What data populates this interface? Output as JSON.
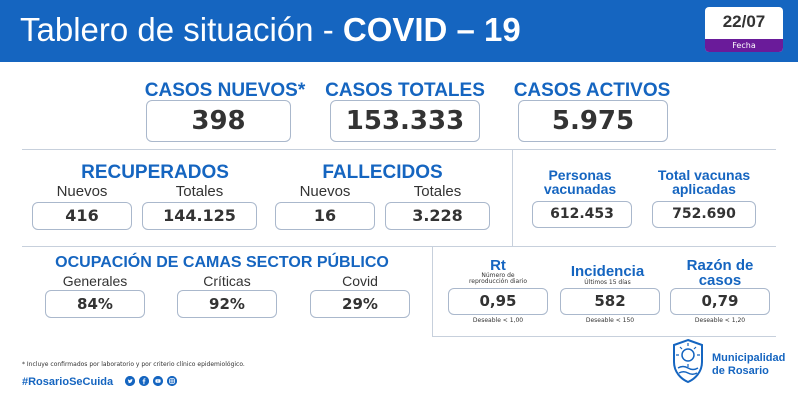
{
  "header": {
    "title_prefix": "Tablero de situación - ",
    "title_bold": "COVID – 19",
    "date": "22/07",
    "date_label": "Fecha"
  },
  "cases": {
    "new_label": "CASOS NUEVOS*",
    "new_value": "398",
    "total_label": "CASOS TOTALES",
    "total_value": "153.333",
    "active_label": "CASOS ACTIVOS",
    "active_value": "5.975"
  },
  "recovered": {
    "label": "RECUPERADOS",
    "new_label": "Nuevos",
    "new_value": "416",
    "total_label": "Totales",
    "total_value": "144.125"
  },
  "deceased": {
    "label": "FALLECIDOS",
    "new_label": "Nuevos",
    "new_value": "16",
    "total_label": "Totales",
    "total_value": "3.228"
  },
  "vaccination": {
    "people_label_1": "Personas",
    "people_label_2": "vacunadas",
    "people_value": "612.453",
    "doses_label_1": "Total vacunas",
    "doses_label_2": "aplicadas",
    "doses_value": "752.690"
  },
  "beds": {
    "label": "OCUPACIÓN DE CAMAS SECTOR PÚBLICO",
    "general_label": "Generales",
    "general_value": "84%",
    "critical_label": "Críticas",
    "critical_value": "92%",
    "covid_label": "Covid",
    "covid_value": "29%"
  },
  "indicators": {
    "rt_label": "Rt",
    "rt_sub_1": "Número de",
    "rt_sub_2": "reproducción diario",
    "rt_value": "0,95",
    "rt_note": "Deseable < 1,00",
    "inc_label": "Incidencia",
    "inc_sub": "Últimos 15 días",
    "inc_value": "582",
    "inc_note": "Deseable < 150",
    "ratio_label_1": "Razón de",
    "ratio_label_2": "casos",
    "ratio_value": "0,79",
    "ratio_note": "Deseable < 1,20"
  },
  "footer": {
    "footnote": "* Incluye confirmados por laboratorio y por criterio clínico epidemiológico.",
    "hashtag": "#RosarioSeCuida",
    "social_icons": [
      "twitter-icon",
      "facebook-icon",
      "youtube-icon",
      "instagram-icon"
    ],
    "municipality_1": "Municipalidad",
    "municipality_2": "de Rosario"
  },
  "colors": {
    "brand_blue": "#1565c0",
    "date_purple": "#6a1b9a",
    "box_border": "#aab8cc"
  }
}
